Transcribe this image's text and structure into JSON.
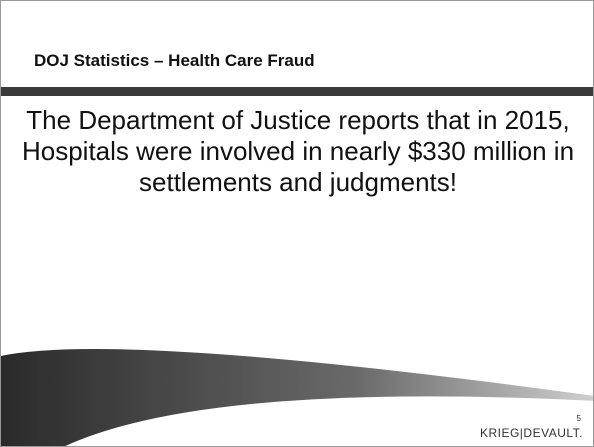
{
  "header": {
    "title": "DOJ Statistics – Health Care Fraud"
  },
  "body": {
    "text": "The Department of Justice reports that in 2015, Hospitals were involved in nearly $330 million in settlements and judgments!"
  },
  "footer": {
    "page_number": "5",
    "logo": "KRIEG|DEVAULT."
  }
}
